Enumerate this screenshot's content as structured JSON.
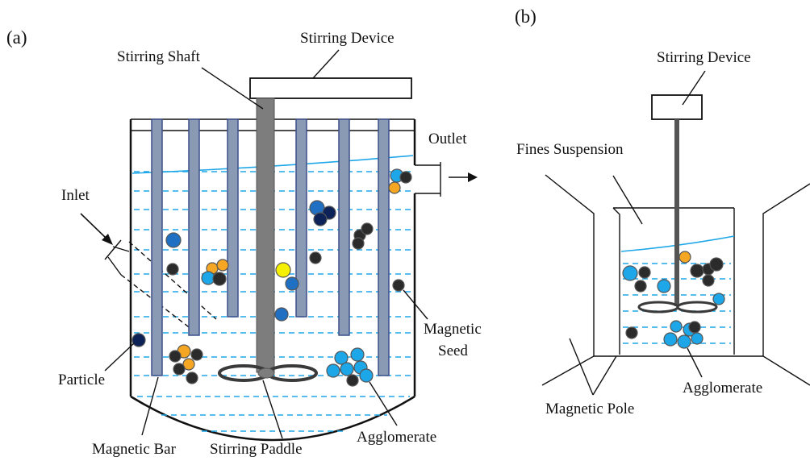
{
  "figure": {
    "panel_a": {
      "tag": "(a)",
      "labels": {
        "stirring_device": "Stirring Device",
        "stirring_shaft": "Stirring Shaft",
        "outlet": "Outlet",
        "inlet": "Inlet",
        "magnetic_seed": "Magnetic\nSeed",
        "magnetic_seed_line1": "Magnetic",
        "magnetic_seed_line2": "Seed",
        "particle": "Particle",
        "magnetic_bar": "Magnetic Bar",
        "stirring_paddle": "Stirring Paddle",
        "agglomerate": "Agglomerate"
      }
    },
    "panel_b": {
      "tag": "(b)",
      "labels": {
        "stirring_device": "Stirring Device",
        "fines_suspension": "Fines Suspension",
        "agglomerate": "Agglomerate",
        "magnetic_pole": "Magnetic Pole"
      }
    },
    "colors": {
      "liquid_line": "#1ea7e8",
      "magnetic_bar": "#8a9ab5",
      "particle_light_blue": "#1ea7e8",
      "particle_mid_blue": "#1f6fc2",
      "particle_navy": "#0d2357",
      "particle_orange": "#f5a623",
      "particle_yellow": "#f5f000",
      "magnetic_seed": "#2b2b2b"
    }
  }
}
